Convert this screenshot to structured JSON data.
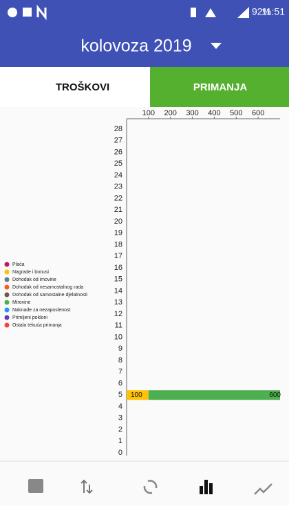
{
  "status": {
    "battery": "92%",
    "time": "11:51"
  },
  "header": {
    "title": "kolovoza 2019"
  },
  "tabs": [
    "TROŠKOVI",
    "PRIMANJA"
  ],
  "chart_data": {
    "type": "bar",
    "orientation": "horizontal",
    "stacked": true,
    "categories": [
      0,
      1,
      2,
      3,
      4,
      5,
      6,
      7,
      8,
      9,
      10,
      11,
      12,
      13,
      14,
      15,
      16,
      17,
      18,
      19,
      20,
      21,
      22,
      23,
      24,
      25,
      26,
      27,
      28
    ],
    "xlim": [
      0,
      700
    ],
    "xticks": [
      100,
      200,
      300,
      400,
      500,
      600
    ],
    "grid": false,
    "legend": "left",
    "series": [
      {
        "name": "Plaća",
        "color": "#c2185b",
        "values": [
          null,
          null,
          null,
          null,
          null,
          0,
          null,
          null,
          null,
          null,
          null,
          null,
          null,
          null,
          null,
          null,
          null,
          null,
          null,
          null,
          null,
          null,
          null,
          null,
          null,
          null,
          null,
          null,
          null
        ]
      },
      {
        "name": "Nagrade i bonusi",
        "color": "#ffc107",
        "values": [
          null,
          null,
          null,
          null,
          null,
          100,
          null,
          null,
          null,
          null,
          null,
          null,
          null,
          null,
          null,
          null,
          null,
          null,
          null,
          null,
          null,
          null,
          null,
          null,
          null,
          null,
          null,
          null,
          null
        ]
      },
      {
        "name": "Dohodak od imovine",
        "color": "#607d8b",
        "values": [
          null,
          null,
          null,
          null,
          null,
          null,
          null,
          null,
          null,
          null,
          null,
          null,
          null,
          null,
          null,
          null,
          null,
          null,
          null,
          null,
          null,
          null,
          null,
          null,
          null,
          null,
          null,
          null,
          null
        ]
      },
      {
        "name": "Dohodak od nesamostalnog rada",
        "color": "#ff5722",
        "values": [
          null,
          null,
          null,
          null,
          null,
          null,
          null,
          null,
          null,
          null,
          null,
          null,
          null,
          null,
          null,
          null,
          null,
          null,
          null,
          null,
          null,
          null,
          null,
          null,
          null,
          null,
          null,
          null,
          null
        ]
      },
      {
        "name": "Dohodak od samostalne djelatnosti",
        "color": "#795548",
        "values": [
          null,
          null,
          null,
          null,
          null,
          null,
          null,
          null,
          null,
          null,
          null,
          null,
          null,
          null,
          null,
          null,
          null,
          null,
          null,
          null,
          null,
          null,
          null,
          null,
          null,
          null,
          null,
          null,
          null
        ]
      },
      {
        "name": "Mirovine",
        "color": "#4caf50",
        "values": [
          null,
          null,
          null,
          null,
          null,
          600,
          null,
          null,
          null,
          null,
          null,
          null,
          null,
          null,
          null,
          null,
          null,
          null,
          null,
          null,
          null,
          null,
          null,
          null,
          null,
          null,
          null,
          null,
          null
        ]
      },
      {
        "name": "Naknade za nezaposlenost",
        "color": "#2196f3",
        "values": [
          null,
          null,
          null,
          null,
          null,
          null,
          null,
          null,
          null,
          null,
          null,
          null,
          null,
          null,
          null,
          null,
          null,
          null,
          null,
          null,
          null,
          null,
          null,
          null,
          null,
          null,
          null,
          null,
          null
        ]
      },
      {
        "name": "Primljeni pokloni",
        "color": "#673ab7",
        "values": [
          null,
          null,
          null,
          null,
          null,
          null,
          null,
          null,
          null,
          null,
          null,
          null,
          null,
          null,
          null,
          null,
          null,
          null,
          null,
          null,
          null,
          null,
          null,
          null,
          null,
          null,
          null,
          null,
          null
        ]
      },
      {
        "name": "Ostala tekuća primanja",
        "color": "#f44336",
        "values": [
          null,
          null,
          null,
          null,
          null,
          null,
          null,
          null,
          null,
          null,
          null,
          null,
          null,
          null,
          null,
          null,
          null,
          null,
          null,
          null,
          null,
          null,
          null,
          null,
          null,
          null,
          null,
          null,
          null
        ]
      }
    ]
  }
}
